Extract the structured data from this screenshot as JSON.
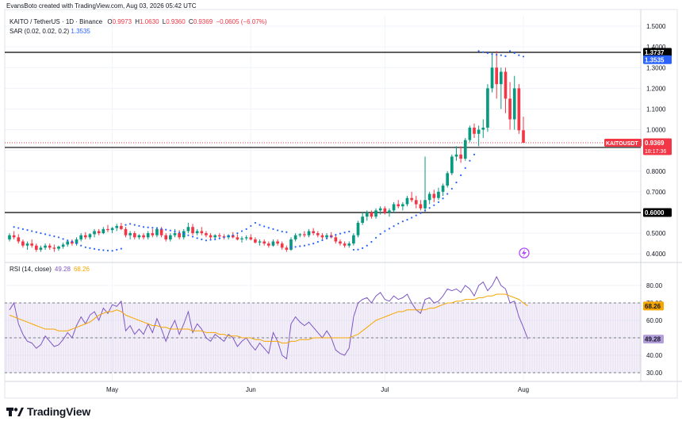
{
  "header": {
    "created_by": "EvansBoto created with TradingView.com, Aug 03, 2026 05:42 UTC"
  },
  "legend": {
    "symbol_line": "KAITO / TetherUS · 1D · Binance",
    "open_label": "O",
    "open": "0.9973",
    "high_label": "H",
    "high": "1.0630",
    "low_label": "L",
    "low": "0.9360",
    "close_label": "C",
    "close": "0.9369",
    "change": "−0.0605 (−6.07%)",
    "sar_label": "SAR (0.02, 0.02, 0.2)",
    "sar_value": "1.3535",
    "rsi_label": "RSI (14, close)",
    "rsi_value": "49.28",
    "rsi_ma_value": "68.26"
  },
  "branding": {
    "name": "TradingView",
    "logo_icon": "tradingview-logo-icon"
  },
  "colors": {
    "up": "#089981",
    "down": "#f23645",
    "sar": "#2962ff",
    "rsi": "#7e57c2",
    "rsi_ma": "#f7a600",
    "rsi_band": "#7e57c2",
    "level": "#000000",
    "price_tag": "#f23645",
    "sar_tag": "#2962ff"
  },
  "chart_data": [
    {
      "type": "candlestick",
      "title": "KAITO / TetherUS · 1D · Binance",
      "ylim": [
        0.37,
        1.55
      ],
      "y_ticks": [
        "1.5000",
        "1.4000",
        "1.3000",
        "1.2000",
        "1.1000",
        "1.0000",
        "0.9000",
        "0.8000",
        "0.7000",
        "0.6000",
        "0.5000",
        "0.4000"
      ],
      "x_tick_labels": [
        {
          "label": "May",
          "index": 23
        },
        {
          "label": "Jun",
          "index": 54
        },
        {
          "label": "Jul",
          "index": 84
        },
        {
          "label": "Aug",
          "index": 115
        }
      ],
      "horizontal_levels": [
        {
          "value": 1.3737,
          "label": "1.3737"
        },
        {
          "value": 0.9142,
          "label": "0.9142"
        },
        {
          "value": 0.6,
          "label": "0.6000"
        }
      ],
      "current_price": {
        "value": 0.9369,
        "label": "0.9369",
        "symbol": "KAITOUSDT",
        "countdown": "18:17:36"
      },
      "sar_last": {
        "value": 1.3535,
        "label": "1.3535"
      },
      "candles": [
        [
          0.47,
          0.5,
          0.46,
          0.49
        ],
        [
          0.49,
          0.51,
          0.47,
          0.48
        ],
        [
          0.48,
          0.495,
          0.45,
          0.46
        ],
        [
          0.46,
          0.47,
          0.43,
          0.44
        ],
        [
          0.44,
          0.46,
          0.42,
          0.45
        ],
        [
          0.45,
          0.47,
          0.43,
          0.44
        ],
        [
          0.44,
          0.45,
          0.41,
          0.42
        ],
        [
          0.42,
          0.44,
          0.41,
          0.43
        ],
        [
          0.43,
          0.45,
          0.42,
          0.44
        ],
        [
          0.44,
          0.45,
          0.42,
          0.43
        ],
        [
          0.43,
          0.445,
          0.41,
          0.425
        ],
        [
          0.425,
          0.44,
          0.415,
          0.435
        ],
        [
          0.435,
          0.455,
          0.425,
          0.445
        ],
        [
          0.445,
          0.47,
          0.435,
          0.46
        ],
        [
          0.46,
          0.47,
          0.44,
          0.45
        ],
        [
          0.45,
          0.48,
          0.44,
          0.47
        ],
        [
          0.47,
          0.5,
          0.46,
          0.49
        ],
        [
          0.49,
          0.505,
          0.47,
          0.48
        ],
        [
          0.48,
          0.5,
          0.47,
          0.495
        ],
        [
          0.495,
          0.52,
          0.48,
          0.51
        ],
        [
          0.51,
          0.52,
          0.49,
          0.5
        ],
        [
          0.5,
          0.53,
          0.495,
          0.52
        ],
        [
          0.52,
          0.54,
          0.505,
          0.515
        ],
        [
          0.515,
          0.53,
          0.5,
          0.525
        ],
        [
          0.525,
          0.545,
          0.51,
          0.535
        ],
        [
          0.535,
          0.55,
          0.515,
          0.52
        ],
        [
          0.52,
          0.53,
          0.48,
          0.49
        ],
        [
          0.49,
          0.51,
          0.47,
          0.5
        ],
        [
          0.5,
          0.51,
          0.47,
          0.48
        ],
        [
          0.48,
          0.495,
          0.47,
          0.49
        ],
        [
          0.49,
          0.5,
          0.47,
          0.48
        ],
        [
          0.48,
          0.51,
          0.47,
          0.5
        ],
        [
          0.5,
          0.52,
          0.48,
          0.49
        ],
        [
          0.49,
          0.53,
          0.48,
          0.52
        ],
        [
          0.52,
          0.53,
          0.48,
          0.49
        ],
        [
          0.49,
          0.5,
          0.46,
          0.47
        ],
        [
          0.47,
          0.5,
          0.46,
          0.49
        ],
        [
          0.49,
          0.52,
          0.48,
          0.5
        ],
        [
          0.5,
          0.515,
          0.47,
          0.48
        ],
        [
          0.48,
          0.52,
          0.47,
          0.51
        ],
        [
          0.51,
          0.55,
          0.5,
          0.53
        ],
        [
          0.53,
          0.545,
          0.49,
          0.5
        ],
        [
          0.5,
          0.52,
          0.49,
          0.51
        ],
        [
          0.51,
          0.53,
          0.49,
          0.5
        ],
        [
          0.5,
          0.51,
          0.48,
          0.49
        ],
        [
          0.49,
          0.5,
          0.47,
          0.48
        ],
        [
          0.48,
          0.495,
          0.47,
          0.49
        ],
        [
          0.49,
          0.5,
          0.475,
          0.485
        ],
        [
          0.485,
          0.495,
          0.47,
          0.48
        ],
        [
          0.48,
          0.495,
          0.47,
          0.49
        ],
        [
          0.49,
          0.505,
          0.475,
          0.48
        ],
        [
          0.48,
          0.495,
          0.465,
          0.47
        ],
        [
          0.47,
          0.485,
          0.455,
          0.475
        ],
        [
          0.475,
          0.49,
          0.465,
          0.48
        ],
        [
          0.48,
          0.495,
          0.465,
          0.47
        ],
        [
          0.47,
          0.48,
          0.45,
          0.455
        ],
        [
          0.455,
          0.47,
          0.44,
          0.46
        ],
        [
          0.46,
          0.47,
          0.44,
          0.45
        ],
        [
          0.45,
          0.46,
          0.43,
          0.44
        ],
        [
          0.44,
          0.47,
          0.435,
          0.46
        ],
        [
          0.46,
          0.47,
          0.44,
          0.45
        ],
        [
          0.45,
          0.46,
          0.42,
          0.43
        ],
        [
          0.43,
          0.44,
          0.41,
          0.42
        ],
        [
          0.42,
          0.48,
          0.415,
          0.47
        ],
        [
          0.47,
          0.5,
          0.46,
          0.49
        ],
        [
          0.49,
          0.5,
          0.48,
          0.495
        ],
        [
          0.495,
          0.51,
          0.48,
          0.49
        ],
        [
          0.49,
          0.52,
          0.48,
          0.51
        ],
        [
          0.51,
          0.525,
          0.49,
          0.5
        ],
        [
          0.5,
          0.51,
          0.48,
          0.49
        ],
        [
          0.49,
          0.5,
          0.47,
          0.48
        ],
        [
          0.48,
          0.5,
          0.47,
          0.49
        ],
        [
          0.49,
          0.505,
          0.475,
          0.48
        ],
        [
          0.48,
          0.49,
          0.45,
          0.46
        ],
        [
          0.46,
          0.47,
          0.44,
          0.45
        ],
        [
          0.45,
          0.46,
          0.43,
          0.44
        ],
        [
          0.44,
          0.46,
          0.43,
          0.45
        ],
        [
          0.45,
          0.5,
          0.44,
          0.49
        ],
        [
          0.49,
          0.56,
          0.48,
          0.55
        ],
        [
          0.55,
          0.6,
          0.54,
          0.58
        ],
        [
          0.58,
          0.61,
          0.56,
          0.6
        ],
        [
          0.6,
          0.61,
          0.57,
          0.58
        ],
        [
          0.58,
          0.62,
          0.57,
          0.61
        ],
        [
          0.61,
          0.63,
          0.59,
          0.62
        ],
        [
          0.62,
          0.63,
          0.59,
          0.6
        ],
        [
          0.6,
          0.62,
          0.58,
          0.61
        ],
        [
          0.61,
          0.65,
          0.6,
          0.64
        ],
        [
          0.64,
          0.66,
          0.62,
          0.63
        ],
        [
          0.63,
          0.65,
          0.61,
          0.64
        ],
        [
          0.64,
          0.68,
          0.63,
          0.67
        ],
        [
          0.67,
          0.7,
          0.65,
          0.66
        ],
        [
          0.66,
          0.68,
          0.62,
          0.64
        ],
        [
          0.64,
          0.66,
          0.61,
          0.62
        ],
        [
          0.62,
          0.87,
          0.61,
          0.66
        ],
        [
          0.66,
          0.7,
          0.64,
          0.69
        ],
        [
          0.69,
          0.71,
          0.65,
          0.67
        ],
        [
          0.67,
          0.72,
          0.66,
          0.7
        ],
        [
          0.7,
          0.74,
          0.68,
          0.73
        ],
        [
          0.73,
          0.8,
          0.72,
          0.79
        ],
        [
          0.79,
          0.88,
          0.78,
          0.87
        ],
        [
          0.87,
          0.92,
          0.85,
          0.88
        ],
        [
          0.88,
          0.92,
          0.84,
          0.86
        ],
        [
          0.86,
          0.96,
          0.85,
          0.95
        ],
        [
          0.95,
          1.02,
          0.94,
          1.01
        ],
        [
          1.01,
          1.03,
          0.96,
          0.98
        ],
        [
          0.98,
          1.02,
          0.92,
          1.0
        ],
        [
          1.0,
          1.05,
          0.96,
          1.01
        ],
        [
          1.01,
          1.22,
          0.99,
          1.2
        ],
        [
          1.2,
          1.37,
          1.18,
          1.3
        ],
        [
          1.3,
          1.38,
          1.15,
          1.22
        ],
        [
          1.22,
          1.3,
          1.1,
          1.28
        ],
        [
          1.28,
          1.3,
          1.08,
          1.15
        ],
        [
          1.15,
          1.23,
          1.0,
          1.05
        ],
        [
          1.05,
          1.26,
          1.0,
          1.2
        ],
        [
          1.2,
          1.22,
          0.98,
          0.997
        ],
        [
          0.9973,
          1.063,
          0.936,
          0.9369
        ]
      ],
      "sar": [
        null,
        0.53,
        0.525,
        0.52,
        0.515,
        0.51,
        0.505,
        0.5,
        0.495,
        0.49,
        0.485,
        0.48,
        0.472,
        0.465,
        0.46,
        0.45,
        0.44,
        0.432,
        0.428,
        0.424,
        0.42,
        0.418,
        0.416,
        0.415,
        0.42,
        0.425,
        0.54,
        0.545,
        0.54,
        0.535,
        0.53,
        0.528,
        0.526,
        0.524,
        0.521,
        0.517,
        0.513,
        0.508,
        0.503,
        0.497,
        0.49,
        0.483,
        0.476,
        0.47,
        0.465,
        0.468,
        0.47,
        0.475,
        0.48,
        0.485,
        0.49,
        0.5,
        0.51,
        0.52,
        0.535,
        0.55,
        0.54,
        0.533,
        0.526,
        0.52,
        0.514,
        0.508,
        0.505,
        0.432,
        0.434,
        0.437,
        0.44,
        0.445,
        0.45,
        0.458,
        0.466,
        0.475,
        0.484,
        0.492,
        0.498,
        0.503,
        0.508,
        0.42,
        0.421,
        0.428,
        0.44,
        0.458,
        0.478,
        0.496,
        0.51,
        0.522,
        0.534,
        0.546,
        0.557,
        0.565,
        0.575,
        0.586,
        0.597,
        0.609,
        0.622,
        0.635,
        0.65,
        0.668,
        0.69,
        0.715,
        0.745,
        0.78,
        0.815,
        0.85,
        0.88,
        1.38,
        1.375,
        1.37,
        1.365,
        1.362,
        1.36,
        1.355,
        1.38,
        1.37,
        1.36,
        1.3535
      ]
    },
    {
      "type": "line",
      "title": "RSI (14, close)",
      "ylim": [
        25,
        90
      ],
      "y_ticks": [
        "80.00",
        "70.00",
        "60.00",
        "50.00",
        "40.00",
        "30.00"
      ],
      "band": [
        30,
        70
      ],
      "middle_line": 50,
      "series": [
        {
          "name": "RSI",
          "last_label": "49.28",
          "values": [
            66,
            70,
            58,
            52,
            48,
            47,
            44,
            46,
            51,
            48,
            45,
            46,
            49,
            53,
            50,
            57,
            62,
            58,
            63,
            65,
            60,
            67,
            64,
            69,
            68,
            71,
            54,
            57,
            52,
            55,
            52,
            58,
            53,
            61,
            55,
            48,
            55,
            60,
            52,
            58,
            65,
            53,
            58,
            55,
            50,
            48,
            52,
            50,
            48,
            52,
            50,
            45,
            48,
            50,
            46,
            43,
            47,
            44,
            41,
            53,
            48,
            40,
            38,
            58,
            62,
            59,
            57,
            59,
            56,
            53,
            50,
            54,
            50,
            43,
            41,
            40,
            44,
            62,
            70,
            72,
            73,
            70,
            74,
            76,
            72,
            71,
            74,
            72,
            73,
            75,
            70,
            66,
            64,
            72,
            73,
            70,
            71,
            74,
            78,
            77,
            78,
            76,
            80,
            78,
            74,
            80,
            82,
            77,
            80,
            85,
            80,
            78,
            70,
            71,
            62,
            56,
            49.28
          ]
        },
        {
          "name": "RSI-based MA",
          "last_label": "68.26",
          "values": [
            63,
            62,
            61,
            60,
            59,
            58,
            57,
            56,
            55,
            55,
            55,
            54,
            54,
            54,
            55,
            56,
            57,
            58,
            59,
            61,
            63,
            64,
            65,
            65,
            66,
            65,
            63,
            62,
            61,
            60,
            59,
            58,
            57,
            57,
            56,
            56,
            55,
            55,
            55,
            55,
            55,
            54,
            54,
            54,
            53,
            53,
            53,
            52,
            52,
            51,
            51,
            51,
            50,
            50,
            50,
            49,
            49,
            48,
            48,
            48,
            48,
            47,
            47,
            48,
            48,
            49,
            49,
            49,
            50,
            50,
            50,
            50,
            50,
            50,
            50,
            50,
            50,
            51,
            52,
            54,
            56,
            58,
            60,
            61,
            62,
            63,
            64,
            65,
            65,
            66,
            66,
            66,
            66,
            66,
            67,
            67,
            68,
            69,
            70,
            70,
            71,
            71,
            72,
            72,
            72,
            73,
            73,
            74,
            74,
            75,
            75,
            75,
            74,
            73,
            72,
            70,
            68.26
          ]
        }
      ]
    }
  ]
}
